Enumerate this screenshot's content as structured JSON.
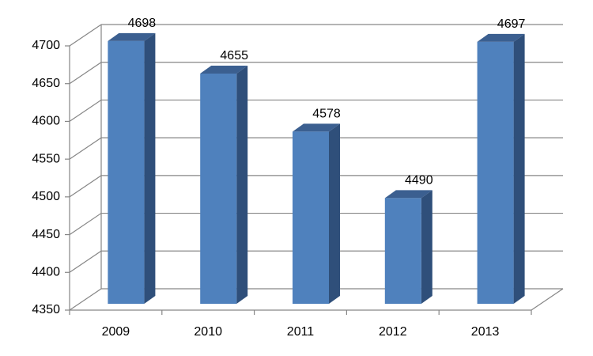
{
  "chart_data": {
    "type": "bar3d",
    "categories": [
      "2009",
      "2010",
      "2011",
      "2012",
      "2013"
    ],
    "values": [
      4698,
      4655,
      4578,
      4490,
      4697
    ],
    "color": "#4f81bd",
    "ylim": [
      4350,
      4700
    ],
    "yticks": [
      4350,
      4400,
      4450,
      4500,
      4550,
      4600,
      4650,
      4700
    ],
    "grid": true
  }
}
